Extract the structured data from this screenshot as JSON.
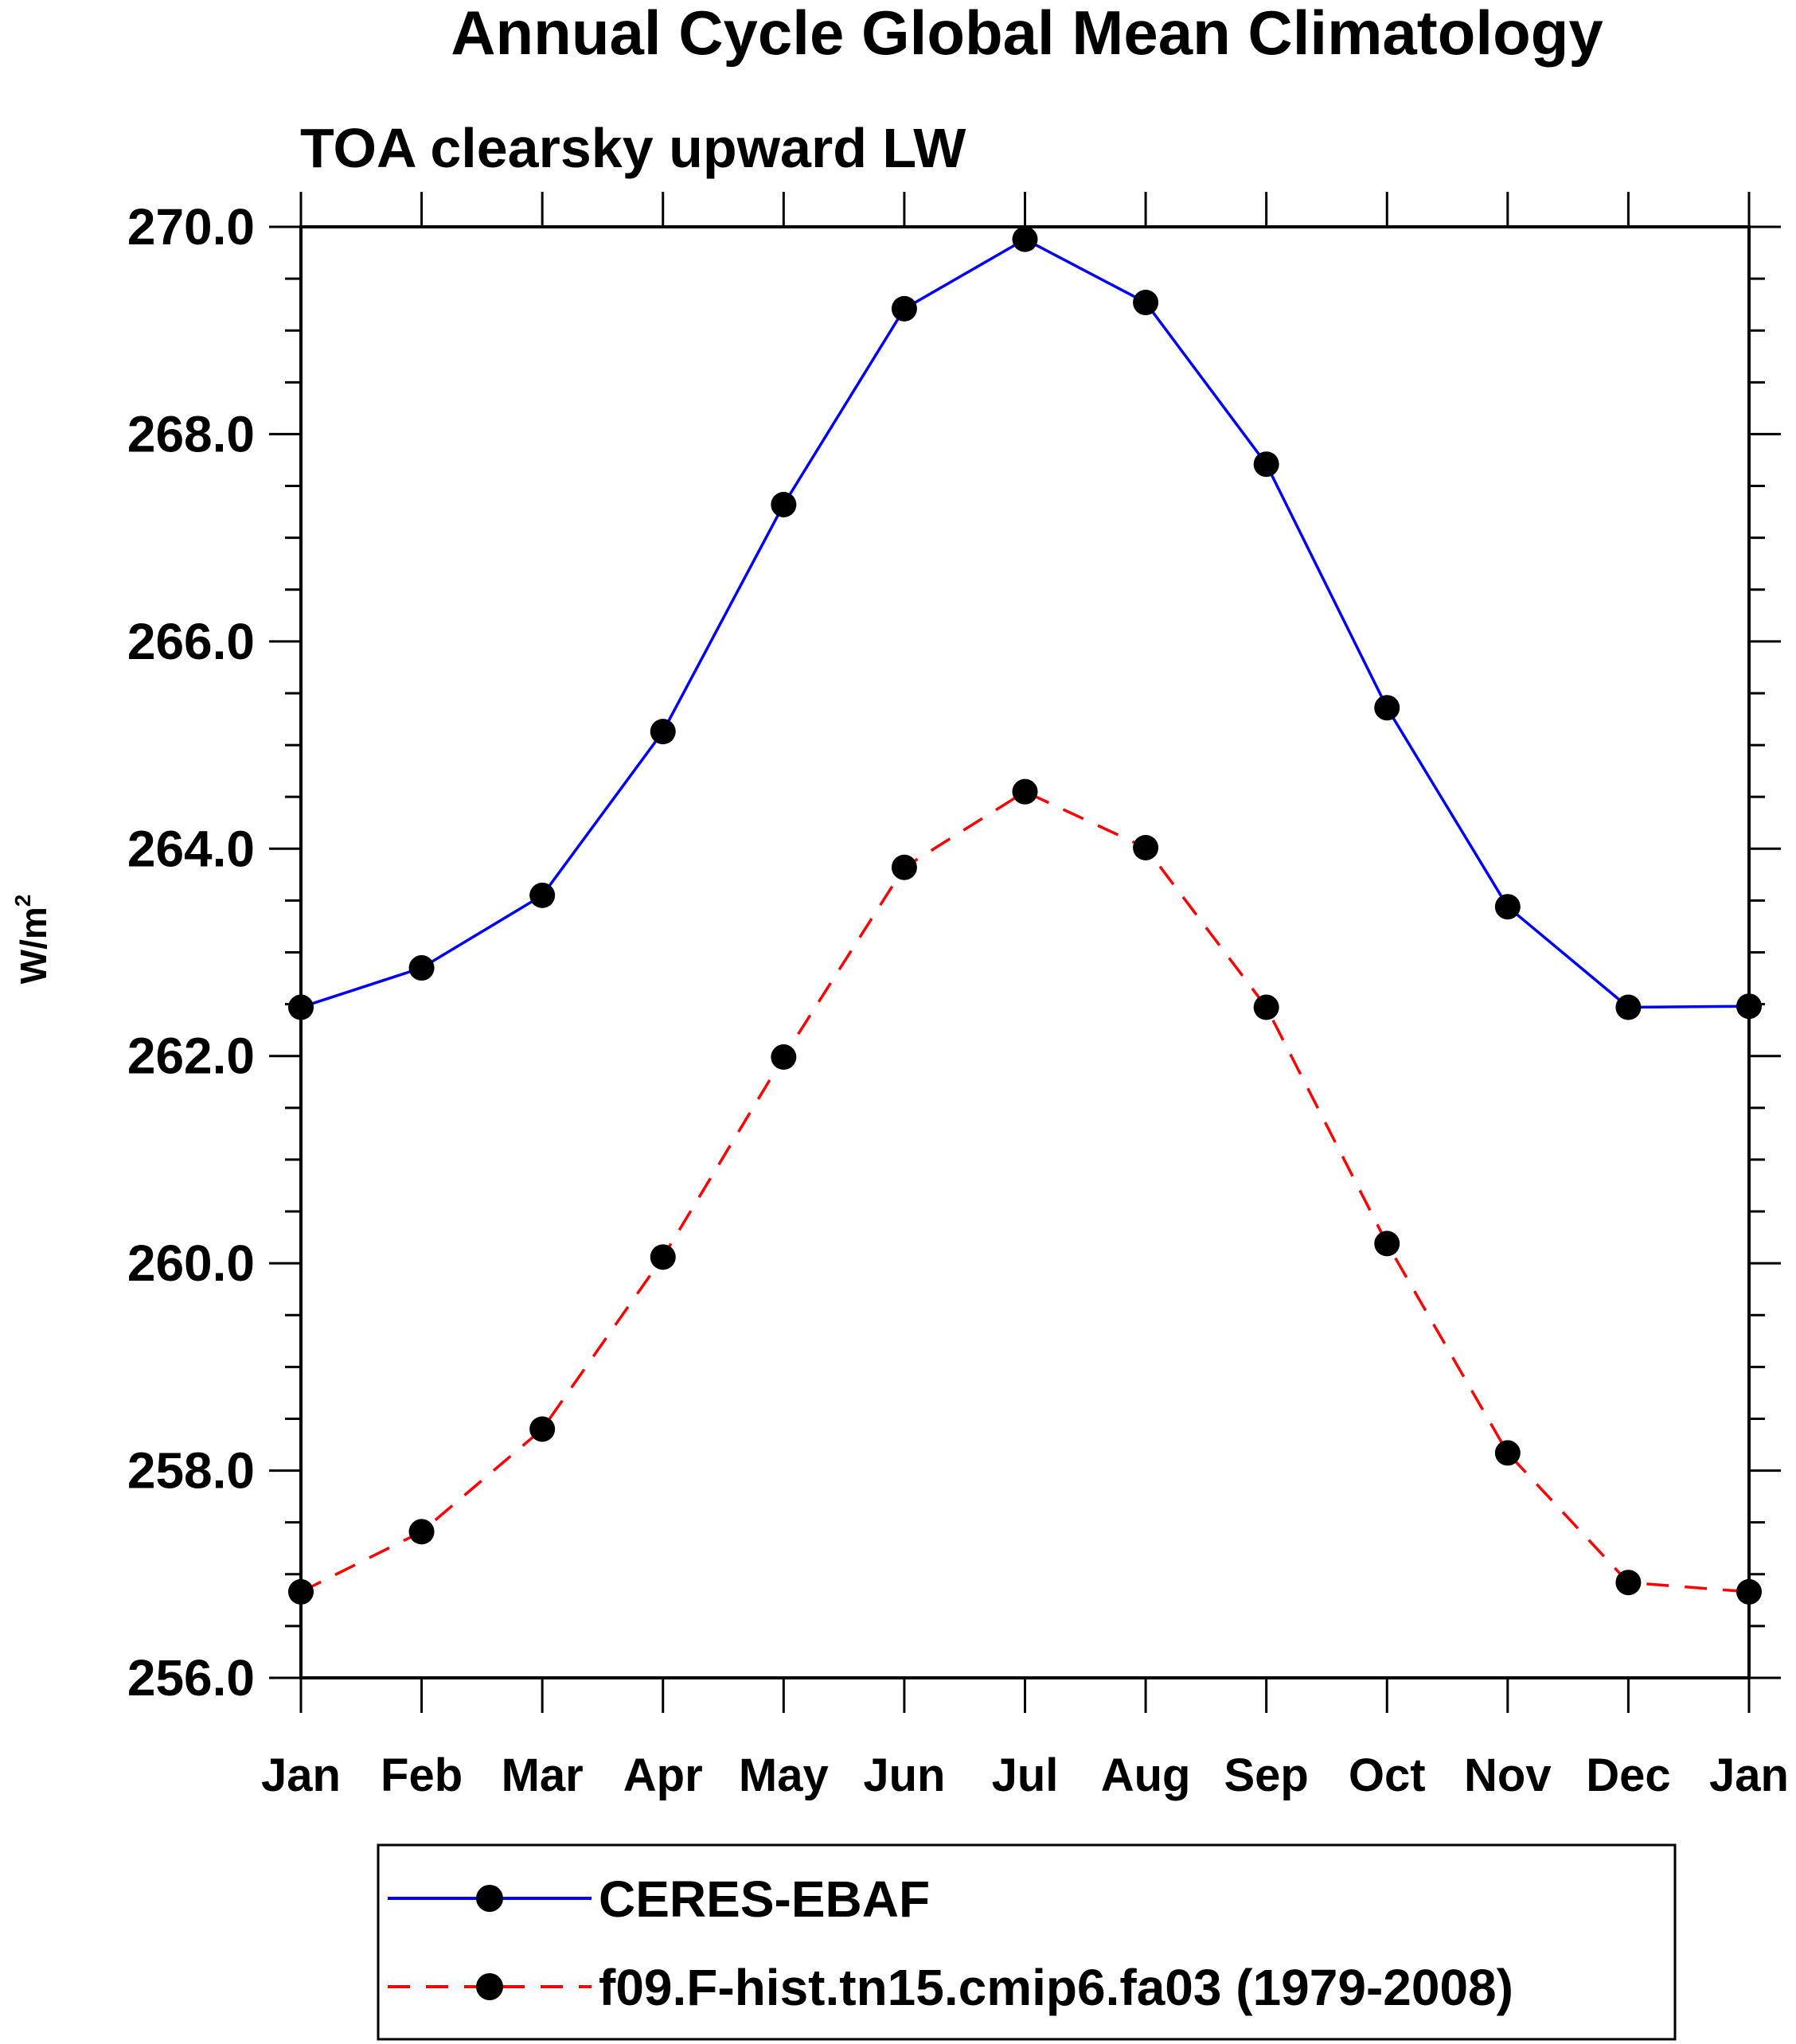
{
  "chart_data": {
    "type": "line",
    "title": "Annual Cycle Global Mean Climatology",
    "subtitle": "TOA clearsky upward LW",
    "xlabel": "",
    "ylabel": "W/m",
    "ylabel_superscript": "2",
    "categories": [
      "Jan",
      "Feb",
      "Mar",
      "Apr",
      "May",
      "Jun",
      "Jul",
      "Aug",
      "Sep",
      "Oct",
      "Nov",
      "Dec",
      "Jan"
    ],
    "ylim": [
      256.0,
      270.0
    ],
    "yticks": [
      "256.0",
      "258.0",
      "260.0",
      "262.0",
      "264.0",
      "266.0",
      "268.0",
      "270.0"
    ],
    "grid": false,
    "legend_position": "bottom",
    "series": [
      {
        "name": "CERES-EBAF",
        "color": "#0000ff",
        "line_style": "solid",
        "marker": "filled-circle",
        "marker_color": "#000000",
        "values": [
          262.47,
          262.85,
          263.55,
          265.13,
          267.32,
          269.21,
          269.88,
          269.27,
          267.71,
          265.36,
          263.44,
          262.47,
          262.48
        ]
      },
      {
        "name": "f09.F-hist.tn15.cmip6.fa03 (1979-2008)",
        "color": "#ff0000",
        "line_style": "dashed",
        "marker": "filled-circle",
        "marker_color": "#000000",
        "values": [
          256.83,
          257.41,
          258.4,
          260.06,
          261.99,
          263.82,
          264.55,
          264.01,
          262.47,
          260.19,
          258.17,
          256.92,
          256.83
        ]
      }
    ]
  }
}
